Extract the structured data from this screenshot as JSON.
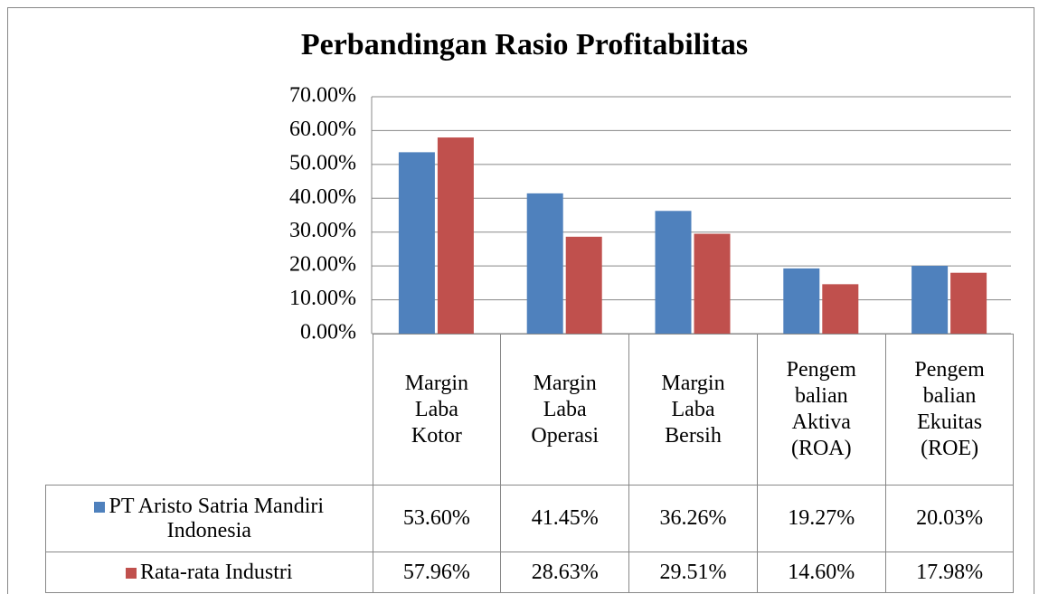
{
  "chart_data": {
    "type": "bar",
    "title": "Perbandingan Rasio Profitabilitas",
    "categories": [
      "Margin\nLaba\nKotor",
      "Margin\nLaba\nOperasi",
      "Margin\nLaba\nBersih",
      "Pengem\nbalian\nAktiva\n(ROA)",
      "Pengem\nbalian\nEkuitas\n(ROE)"
    ],
    "series": [
      {
        "name": "PT Aristo Satria Mandiri Indonesia",
        "color": "#4f81bd",
        "values": [
          53.6,
          41.45,
          36.26,
          19.27,
          20.03
        ],
        "value_labels": [
          "53.60%",
          "41.45%",
          "36.26%",
          "19.27%",
          "20.03%"
        ]
      },
      {
        "name": "Rata-rata Industri",
        "color": "#c0504d",
        "values": [
          57.96,
          28.63,
          29.51,
          14.6,
          17.98
        ],
        "value_labels": [
          "57.96%",
          "28.63%",
          "29.51%",
          "14.60%",
          "17.98%"
        ]
      }
    ],
    "ylim": [
      0,
      70
    ],
    "yticks": [
      {
        "value": 0,
        "label": "0.00%"
      },
      {
        "value": 10,
        "label": "10.00%"
      },
      {
        "value": 20,
        "label": "20.00%"
      },
      {
        "value": 30,
        "label": "30.00%"
      },
      {
        "value": 40,
        "label": "40.00%"
      },
      {
        "value": 50,
        "label": "50.00%"
      },
      {
        "value": 60,
        "label": "60.00%"
      },
      {
        "value": 70,
        "label": "70.00%"
      }
    ],
    "grid": true
  }
}
